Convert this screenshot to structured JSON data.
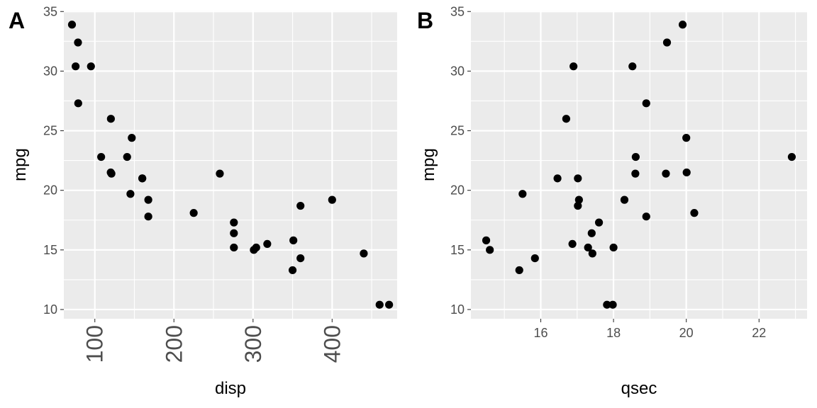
{
  "chart_data": [
    {
      "type": "scatter",
      "tag": "A",
      "xlabel": "disp",
      "ylabel": "mpg",
      "xlim": [
        60.8,
        482.2
      ],
      "ylim": [
        9.225,
        35.075
      ],
      "xticks": [
        100,
        200,
        300,
        400
      ],
      "xminor": [
        150,
        250,
        350,
        450
      ],
      "yticks": [
        10,
        15,
        20,
        25,
        30,
        35
      ],
      "yminor": [
        12.5,
        17.5,
        22.5,
        27.5,
        32.5
      ],
      "x_tick_labels_rotated": true,
      "grid": true,
      "x": [
        160,
        160,
        108,
        258,
        360,
        225,
        360,
        146.7,
        140.8,
        167.6,
        167.6,
        275.8,
        275.8,
        275.8,
        472,
        460,
        440,
        78.7,
        75.7,
        71.1,
        120.1,
        318,
        304,
        350,
        400,
        79,
        120.3,
        95.1,
        351,
        145,
        301,
        121
      ],
      "y": [
        21,
        21,
        22.8,
        21.4,
        18.7,
        18.1,
        14.3,
        24.4,
        22.8,
        19.2,
        17.8,
        16.4,
        17.3,
        15.2,
        10.4,
        10.4,
        14.7,
        32.4,
        30.4,
        33.9,
        21.5,
        15.5,
        15.2,
        13.3,
        19.2,
        27.3,
        26,
        30.4,
        15.8,
        19.7,
        15,
        21.4
      ]
    },
    {
      "type": "scatter",
      "tag": "B",
      "xlabel": "qsec",
      "ylabel": "mpg",
      "xlim": [
        14.08,
        23.32
      ],
      "ylim": [
        9.225,
        35.075
      ],
      "xticks": [
        16,
        18,
        20,
        22
      ],
      "xminor": [
        15,
        17,
        19,
        21,
        23
      ],
      "yticks": [
        10,
        15,
        20,
        25,
        30,
        35
      ],
      "yminor": [
        12.5,
        17.5,
        22.5,
        27.5,
        32.5
      ],
      "x_tick_labels_rotated": false,
      "grid": true,
      "x": [
        16.46,
        17.02,
        18.61,
        19.44,
        17.02,
        20.22,
        15.84,
        20,
        22.9,
        18.3,
        18.9,
        17.4,
        17.6,
        18,
        17.98,
        17.82,
        17.42,
        19.47,
        18.52,
        19.9,
        20.01,
        16.87,
        17.3,
        15.41,
        17.05,
        18.9,
        16.7,
        16.9,
        14.5,
        15.5,
        14.6,
        18.6
      ],
      "y": [
        21,
        21,
        22.8,
        21.4,
        18.7,
        18.1,
        14.3,
        24.4,
        22.8,
        19.2,
        17.8,
        16.4,
        17.3,
        15.2,
        10.4,
        10.4,
        14.7,
        32.4,
        30.4,
        33.9,
        21.5,
        15.5,
        15.2,
        13.3,
        19.2,
        27.3,
        26,
        30.4,
        15.8,
        19.7,
        15,
        21.4
      ]
    }
  ]
}
